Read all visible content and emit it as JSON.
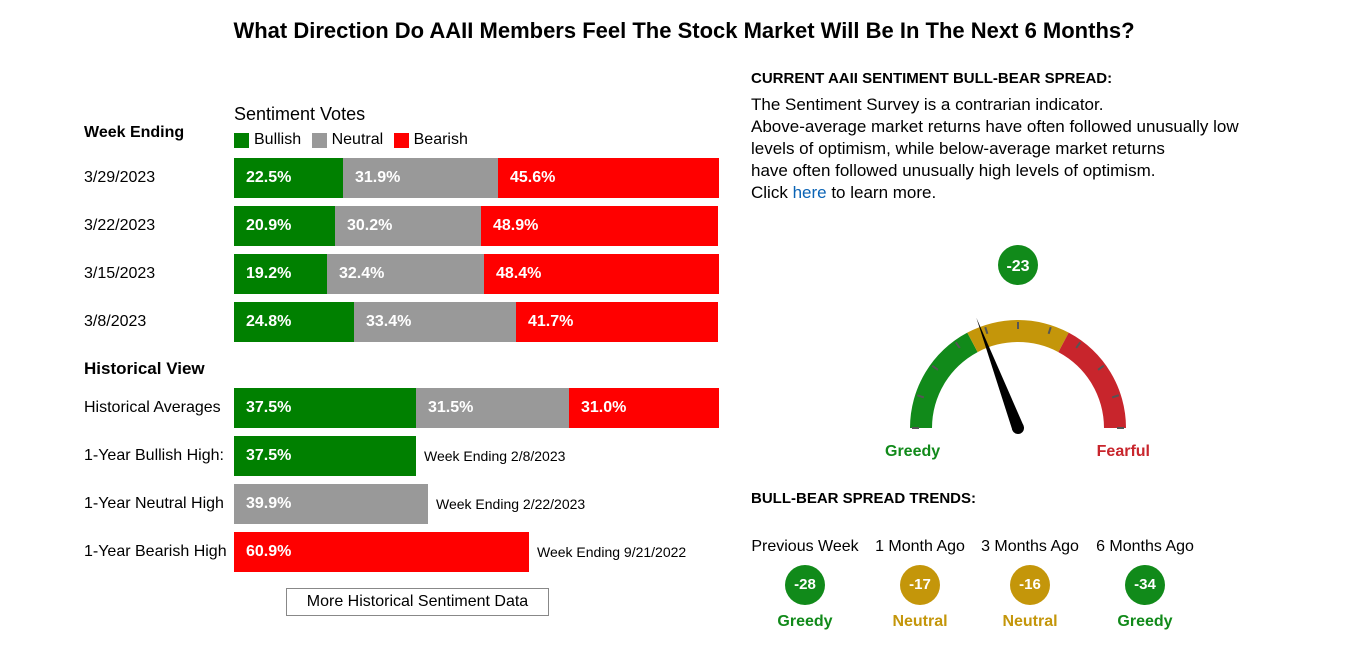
{
  "title": "What Direction Do AAII Members Feel The Stock Market Will Be In The Next 6 Months?",
  "colors": {
    "bullish": "#008000",
    "neutral": "#999999",
    "bearish": "#ff0000",
    "gauge_green": "#118a1a",
    "gauge_gold": "#c4960a",
    "gauge_red": "#c8252c",
    "link": "#0a63b5"
  },
  "weekly": {
    "heading": "Week Ending",
    "votes_label": "Sentiment Votes",
    "legend": {
      "bullish": "Bullish",
      "neutral": "Neutral",
      "bearish": "Bearish"
    },
    "rows": [
      {
        "week": "3/29/2023",
        "bullish": "22.5%",
        "neutral": "31.9%",
        "bearish": "45.6%"
      },
      {
        "week": "3/22/2023",
        "bullish": "20.9%",
        "neutral": "30.2%",
        "bearish": "48.9%"
      },
      {
        "week": "3/15/2023",
        "bullish": "19.2%",
        "neutral": "32.4%",
        "bearish": "48.4%"
      },
      {
        "week": "3/8/2023",
        "bullish": "24.8%",
        "neutral": "33.4%",
        "bearish": "41.7%"
      }
    ]
  },
  "historical": {
    "heading": "Historical View",
    "averages": {
      "label": "Historical Averages",
      "bullish": "37.5%",
      "neutral": "31.5%",
      "bearish": "31.0%"
    },
    "highs": [
      {
        "label": "1-Year Bullish High:",
        "value": "37.5%",
        "kind": "bullish",
        "note": "Week Ending 2/8/2023"
      },
      {
        "label": "1-Year Neutral High",
        "value": "39.9%",
        "kind": "neutral",
        "note": "Week Ending 2/22/2023"
      },
      {
        "label": "1-Year Bearish High",
        "value": "60.9%",
        "kind": "bearish",
        "note": "Week Ending 9/21/2022"
      }
    ],
    "more_button": "More Historical Sentiment Data"
  },
  "spread": {
    "heading": "CURRENT AAII SENTIMENT BULL-BEAR SPREAD:",
    "desc_lines": [
      "The Sentiment Survey is a contrarian indicator.",
      "Above-average market returns have often followed unusually low",
      "levels of optimism, while below-average market returns",
      "have often followed unusually high levels of optimism."
    ],
    "click_pre": "Click ",
    "click_link": "here",
    "click_post": " to learn more.",
    "gauge": {
      "value": "-23",
      "value_num": -23,
      "min": -100,
      "max": 100,
      "left_label": "Greedy",
      "right_label": "Fearful"
    }
  },
  "trends": {
    "heading": "BULL-BEAR SPREAD TRENDS:",
    "items": [
      {
        "label": "Previous Week",
        "value": "-28",
        "status": "Greedy",
        "color": "#118a1a"
      },
      {
        "label": "1 Month Ago",
        "value": "-17",
        "status": "Neutral",
        "color": "#c4960a"
      },
      {
        "label": "3 Months Ago",
        "value": "-16",
        "status": "Neutral",
        "color": "#c4960a"
      },
      {
        "label": "6 Months Ago",
        "value": "-34",
        "status": "Greedy",
        "color": "#118a1a"
      }
    ]
  },
  "chart_data": {
    "type": "bar",
    "stacked": true,
    "orientation": "horizontal",
    "title": "What Direction Do AAII Members Feel The Stock Market Will Be In The Next 6 Months?",
    "categories": [
      "3/29/2023",
      "3/22/2023",
      "3/15/2023",
      "3/8/2023",
      "Historical Averages"
    ],
    "series": [
      {
        "name": "Bullish",
        "values": [
          22.5,
          20.9,
          19.2,
          24.8,
          37.5
        ]
      },
      {
        "name": "Neutral",
        "values": [
          31.9,
          30.2,
          32.4,
          33.4,
          31.5
        ]
      },
      {
        "name": "Bearish",
        "values": [
          45.6,
          48.9,
          48.4,
          41.7,
          31.0
        ]
      }
    ],
    "one_year_highs": [
      {
        "name": "Bullish",
        "value": 37.5,
        "week": "2/8/2023"
      },
      {
        "name": "Neutral",
        "value": 39.9,
        "week": "2/22/2023"
      },
      {
        "name": "Bearish",
        "value": 60.9,
        "week": "9/21/2022"
      }
    ],
    "legend": "top",
    "bull_bear_spread": {
      "current": -23,
      "previous_week": -28,
      "one_month_ago": -17,
      "three_months_ago": -16,
      "six_months_ago": -34
    }
  }
}
